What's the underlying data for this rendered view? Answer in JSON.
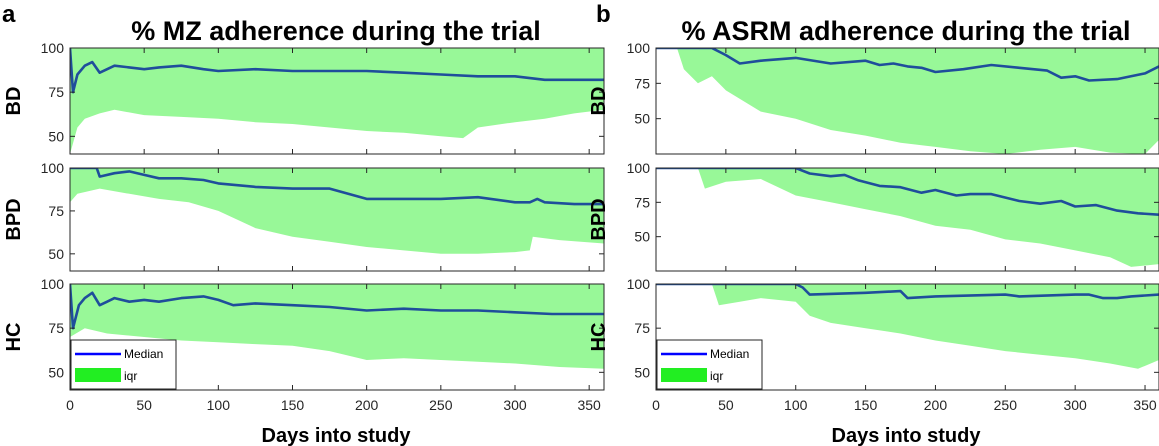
{
  "panels": [
    {
      "letter": "a",
      "title": "% MZ adherence during the trial",
      "xlabel": "Days into study"
    },
    {
      "letter": "b",
      "title": "% ASRM adherence during the trial",
      "xlabel": "Days into study"
    }
  ],
  "legend": {
    "median_label": "Median",
    "iqr_label": "iqr"
  },
  "colors": {
    "median": "#1f4e9b",
    "legend_median": "#0000ff",
    "iqr_fill": "#98f898",
    "legend_iqr": "#22ee22",
    "axis": "#262626"
  },
  "chart_data": [
    {
      "type": "area",
      "panel": "a",
      "subplot": "BD",
      "ylabel": "BD",
      "xlim": [
        0,
        360
      ],
      "ylim": [
        40,
        100
      ],
      "yticks": [
        50,
        75,
        100
      ],
      "xticks": [
        0,
        50,
        100,
        150,
        200,
        250,
        300,
        350
      ],
      "series": [
        {
          "name": "Median",
          "x": [
            0,
            2,
            5,
            10,
            15,
            20,
            25,
            30,
            40,
            50,
            60,
            75,
            90,
            100,
            125,
            150,
            175,
            200,
            225,
            250,
            275,
            300,
            320,
            340,
            360
          ],
          "y": [
            100,
            75,
            85,
            90,
            92,
            86,
            88,
            90,
            89,
            88,
            89,
            90,
            88,
            87,
            88,
            87,
            87,
            87,
            86,
            85,
            84,
            84,
            82,
            82,
            82
          ]
        },
        {
          "name": "iqr",
          "x": [
            0,
            5,
            10,
            20,
            30,
            50,
            75,
            100,
            125,
            150,
            175,
            200,
            225,
            250,
            265,
            275,
            300,
            320,
            340,
            360
          ],
          "upper": [
            100,
            100,
            100,
            100,
            100,
            100,
            100,
            100,
            100,
            100,
            100,
            100,
            100,
            100,
            100,
            100,
            100,
            100,
            100,
            100
          ],
          "lower": [
            40,
            55,
            60,
            63,
            65,
            62,
            61,
            60,
            58,
            57,
            55,
            53,
            52,
            50,
            49,
            55,
            58,
            60,
            63,
            65
          ]
        }
      ]
    },
    {
      "type": "area",
      "panel": "a",
      "subplot": "BPD",
      "ylabel": "BPD",
      "xlim": [
        0,
        360
      ],
      "ylim": [
        40,
        100
      ],
      "yticks": [
        50,
        75,
        100
      ],
      "xticks": [
        0,
        50,
        100,
        150,
        200,
        250,
        300,
        350
      ],
      "series": [
        {
          "name": "Median",
          "x": [
            0,
            10,
            18,
            20,
            30,
            40,
            50,
            60,
            75,
            90,
            100,
            125,
            150,
            175,
            200,
            225,
            250,
            275,
            300,
            310,
            315,
            320,
            340,
            360
          ],
          "y": [
            100,
            100,
            100,
            95,
            97,
            98,
            96,
            94,
            94,
            93,
            91,
            89,
            88,
            88,
            82,
            82,
            82,
            83,
            80,
            80,
            82,
            80,
            79,
            79
          ]
        },
        {
          "name": "iqr",
          "x": [
            0,
            5,
            20,
            40,
            60,
            80,
            100,
            125,
            150,
            175,
            200,
            225,
            250,
            275,
            300,
            310,
            312,
            330,
            360
          ],
          "upper": [
            100,
            100,
            100,
            100,
            100,
            100,
            100,
            100,
            100,
            100,
            100,
            100,
            100,
            100,
            100,
            100,
            100,
            100,
            100
          ],
          "lower": [
            80,
            85,
            88,
            85,
            82,
            80,
            75,
            65,
            60,
            57,
            54,
            52,
            50,
            50,
            51,
            52,
            60,
            58,
            56
          ]
        }
      ]
    },
    {
      "type": "area",
      "panel": "a",
      "subplot": "HC",
      "ylabel": "HC",
      "xlim": [
        0,
        360
      ],
      "ylim": [
        40,
        100
      ],
      "yticks": [
        50,
        75,
        100
      ],
      "xticks": [
        0,
        50,
        100,
        150,
        200,
        250,
        300,
        350
      ],
      "series": [
        {
          "name": "Median",
          "x": [
            0,
            2,
            6,
            10,
            15,
            20,
            25,
            30,
            40,
            50,
            60,
            75,
            90,
            100,
            110,
            125,
            150,
            175,
            200,
            225,
            250,
            275,
            300,
            325,
            360
          ],
          "y": [
            100,
            75,
            88,
            92,
            95,
            88,
            90,
            92,
            90,
            91,
            90,
            92,
            93,
            91,
            88,
            89,
            88,
            87,
            85,
            86,
            85,
            85,
            84,
            83,
            83
          ]
        },
        {
          "name": "iqr",
          "x": [
            0,
            10,
            25,
            50,
            75,
            100,
            125,
            150,
            175,
            200,
            225,
            250,
            275,
            300,
            330,
            360
          ],
          "upper": [
            100,
            100,
            100,
            100,
            100,
            100,
            100,
            100,
            100,
            100,
            100,
            100,
            100,
            100,
            100,
            100
          ],
          "lower": [
            70,
            75,
            72,
            70,
            68,
            67,
            66,
            65,
            62,
            57,
            58,
            57,
            56,
            55,
            53,
            52
          ]
        }
      ]
    },
    {
      "type": "area",
      "panel": "b",
      "subplot": "BD",
      "ylabel": "BD",
      "xlim": [
        0,
        360
      ],
      "ylim": [
        25,
        100
      ],
      "yticks": [
        50,
        75,
        100
      ],
      "xticks": [
        0,
        50,
        100,
        150,
        200,
        250,
        300,
        350
      ],
      "series": [
        {
          "name": "Median",
          "x": [
            0,
            20,
            40,
            50,
            60,
            75,
            100,
            125,
            150,
            160,
            170,
            180,
            190,
            200,
            220,
            240,
            260,
            280,
            290,
            300,
            310,
            330,
            350,
            360
          ],
          "y": [
            100,
            100,
            100,
            95,
            89,
            91,
            93,
            89,
            91,
            88,
            89,
            87,
            86,
            83,
            85,
            88,
            86,
            84,
            79,
            80,
            77,
            78,
            82,
            87
          ]
        },
        {
          "name": "iqr",
          "x": [
            0,
            15,
            20,
            30,
            40,
            50,
            75,
            100,
            125,
            150,
            175,
            200,
            225,
            250,
            275,
            300,
            325,
            350,
            360
          ],
          "upper": [
            100,
            100,
            100,
            100,
            100,
            100,
            100,
            100,
            100,
            100,
            100,
            100,
            100,
            100,
            100,
            100,
            100,
            100,
            100
          ],
          "lower": [
            100,
            100,
            85,
            75,
            80,
            70,
            55,
            50,
            42,
            38,
            33,
            30,
            27,
            25,
            28,
            30,
            26,
            25,
            35
          ]
        }
      ]
    },
    {
      "type": "area",
      "panel": "b",
      "subplot": "BPD",
      "ylabel": "BPD",
      "xlim": [
        0,
        360
      ],
      "ylim": [
        25,
        100
      ],
      "yticks": [
        50,
        75,
        100
      ],
      "xticks": [
        0,
        50,
        100,
        150,
        200,
        250,
        300,
        350
      ],
      "series": [
        {
          "name": "Median",
          "x": [
            0,
            25,
            50,
            75,
            100,
            110,
            125,
            135,
            145,
            160,
            175,
            190,
            200,
            215,
            225,
            240,
            260,
            275,
            290,
            300,
            315,
            330,
            345,
            360
          ],
          "y": [
            100,
            100,
            100,
            100,
            100,
            96,
            94,
            95,
            91,
            87,
            86,
            82,
            84,
            80,
            81,
            81,
            76,
            74,
            76,
            72,
            73,
            69,
            67,
            66
          ]
        },
        {
          "name": "iqr",
          "x": [
            0,
            30,
            35,
            50,
            75,
            100,
            125,
            150,
            175,
            200,
            225,
            250,
            275,
            300,
            325,
            340,
            360
          ],
          "upper": [
            100,
            100,
            100,
            100,
            100,
            100,
            100,
            100,
            100,
            100,
            100,
            100,
            100,
            100,
            100,
            100,
            100
          ],
          "lower": [
            100,
            100,
            85,
            90,
            92,
            80,
            75,
            70,
            65,
            58,
            55,
            48,
            45,
            40,
            35,
            28,
            30
          ]
        }
      ]
    },
    {
      "type": "area",
      "panel": "b",
      "subplot": "HC",
      "ylabel": "HC",
      "xlim": [
        0,
        360
      ],
      "ylim": [
        40,
        100
      ],
      "yticks": [
        50,
        75,
        100
      ],
      "xticks": [
        0,
        50,
        100,
        150,
        200,
        250,
        300,
        350
      ],
      "series": [
        {
          "name": "Median",
          "x": [
            0,
            50,
            100,
            105,
            110,
            150,
            175,
            180,
            200,
            250,
            260,
            300,
            310,
            320,
            330,
            340,
            360
          ],
          "y": [
            100,
            100,
            100,
            98,
            94,
            95,
            96,
            92,
            93,
            94,
            93,
            94,
            94,
            92,
            92,
            93,
            94
          ]
        },
        {
          "name": "iqr",
          "x": [
            0,
            40,
            45,
            60,
            75,
            100,
            110,
            125,
            150,
            175,
            200,
            225,
            250,
            275,
            300,
            325,
            345,
            360
          ],
          "upper": [
            100,
            100,
            100,
            100,
            100,
            100,
            100,
            100,
            100,
            100,
            100,
            100,
            100,
            100,
            100,
            100,
            100,
            100
          ],
          "lower": [
            100,
            100,
            88,
            90,
            92,
            90,
            82,
            78,
            75,
            72,
            68,
            65,
            62,
            60,
            58,
            55,
            52,
            57
          ]
        }
      ]
    }
  ]
}
